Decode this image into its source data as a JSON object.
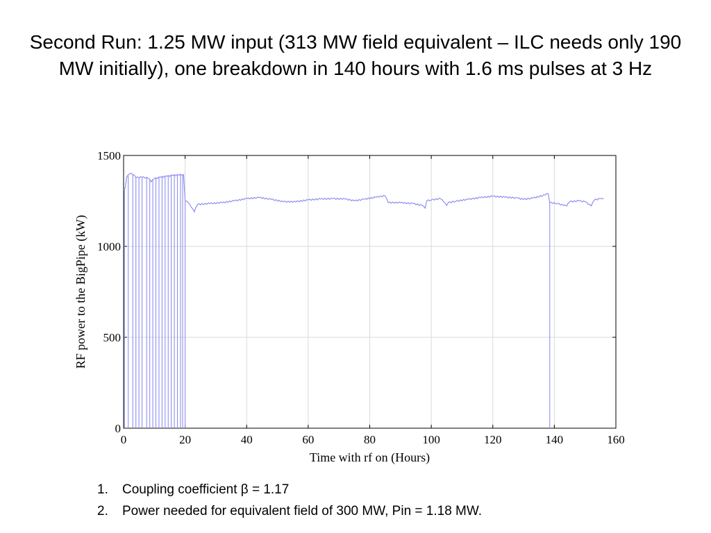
{
  "slide": {
    "title": "Second Run: 1.25 MW input (313 MW field equivalent – ILC needs only 190 MW initially), one breakdown in 140 hours with 1.6 ms pulses at 3 Hz",
    "notes": [
      {
        "number": "1.",
        "text": "Coupling coefficient β = 1.17"
      },
      {
        "number": "2.",
        "text": "Power needed for equivalent field of 300 MW, Pin = 1.18 MW."
      }
    ]
  },
  "chart_data": {
    "type": "line",
    "title": "",
    "xlabel": "Time with rf on (Hours)",
    "ylabel": "RF power  to the BigPipe (kW)",
    "xlim": [
      0,
      160
    ],
    "ylim": [
      0,
      1500
    ],
    "xticks": [
      0,
      20,
      40,
      60,
      80,
      100,
      120,
      140,
      160
    ],
    "yticks": [
      0,
      500,
      1000,
      1500
    ],
    "grid": true,
    "line_color": "#8f8fef",
    "series": [
      {
        "points": [
          [
            0,
            1310
          ],
          [
            0.5,
            1320
          ],
          [
            1,
            1380
          ],
          [
            2,
            1400
          ],
          [
            3,
            1395
          ],
          [
            4,
            1378
          ],
          [
            6,
            1380
          ],
          [
            8,
            1375
          ],
          [
            9,
            1355
          ],
          [
            10,
            1372
          ],
          [
            12,
            1380
          ],
          [
            14,
            1385
          ],
          [
            16,
            1390
          ],
          [
            18,
            1392
          ],
          [
            19.5,
            1395
          ],
          [
            20,
            1250
          ],
          [
            21,
            1240
          ],
          [
            22,
            1215
          ],
          [
            23,
            1190
          ],
          [
            24,
            1230
          ],
          [
            28,
            1235
          ],
          [
            32,
            1240
          ],
          [
            36,
            1250
          ],
          [
            40,
            1262
          ],
          [
            44,
            1268
          ],
          [
            48,
            1258
          ],
          [
            52,
            1245
          ],
          [
            56,
            1245
          ],
          [
            60,
            1255
          ],
          [
            64,
            1260
          ],
          [
            68,
            1262
          ],
          [
            72,
            1260
          ],
          [
            75,
            1250
          ],
          [
            78,
            1258
          ],
          [
            82,
            1270
          ],
          [
            85,
            1278
          ],
          [
            86,
            1240
          ],
          [
            90,
            1240
          ],
          [
            94,
            1235
          ],
          [
            97,
            1225
          ],
          [
            98,
            1210
          ],
          [
            98.5,
            1250
          ],
          [
            100,
            1255
          ],
          [
            103,
            1262
          ],
          [
            104,
            1245
          ],
          [
            105,
            1225
          ],
          [
            105.5,
            1240
          ],
          [
            108,
            1248
          ],
          [
            112,
            1258
          ],
          [
            116,
            1268
          ],
          [
            120,
            1275
          ],
          [
            124,
            1270
          ],
          [
            128,
            1265
          ],
          [
            130,
            1258
          ],
          [
            133,
            1265
          ],
          [
            137,
            1282
          ],
          [
            138,
            1290
          ],
          [
            138.5,
            1240
          ],
          [
            141,
            1235
          ],
          [
            143,
            1225
          ],
          [
            144,
            1222
          ],
          [
            145,
            1245
          ],
          [
            148,
            1250
          ],
          [
            150,
            1245
          ],
          [
            152,
            1222
          ],
          [
            153,
            1255
          ],
          [
            155,
            1262
          ],
          [
            156,
            1260
          ]
        ],
        "drops_to_zero_at_hours": [
          0.3,
          1.5,
          3,
          4,
          5,
          6,
          7.5,
          8.5,
          9.5,
          10.5,
          11.5,
          12.5,
          13.5,
          14.5,
          15.5,
          16.5,
          17.5,
          18.5,
          19.2,
          20,
          138.5
        ]
      }
    ]
  }
}
